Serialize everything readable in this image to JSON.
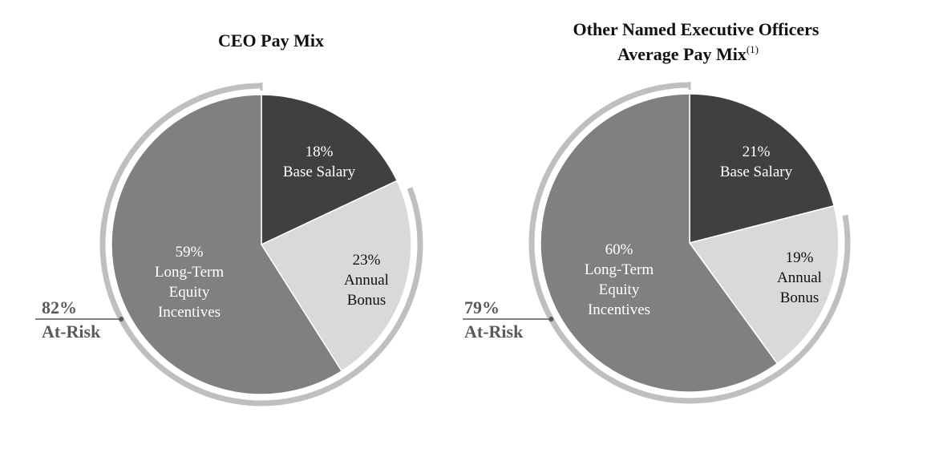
{
  "chart_data": [
    {
      "type": "pie",
      "title": "CEO Pay Mix",
      "slices": [
        {
          "label_pct": "18%",
          "label_lines": [
            "Base Salary"
          ],
          "value": 18,
          "color": "#404040",
          "text_color": "#ffffff"
        },
        {
          "label_pct": "23%",
          "label_lines": [
            "Annual",
            "Bonus"
          ],
          "value": 23,
          "color": "#d9d9d9",
          "text_color": "#111111"
        },
        {
          "label_pct": "59%",
          "label_lines": [
            "Long-Term",
            "Equity",
            "Incentives"
          ],
          "value": 59,
          "color": "#808080",
          "text_color": "#ffffff"
        }
      ],
      "at_risk": {
        "pct": "82%",
        "label": "At-Risk",
        "value": 82,
        "arc_color": "#bfbfbf"
      }
    },
    {
      "type": "pie",
      "title_lines": [
        "Other Named Executive Officers",
        "Average Pay Mix"
      ],
      "title_superscript": "(1)",
      "slices": [
        {
          "label_pct": "21%",
          "label_lines": [
            "Base Salary"
          ],
          "value": 21,
          "color": "#404040",
          "text_color": "#ffffff"
        },
        {
          "label_pct": "19%",
          "label_lines": [
            "Annual",
            "Bonus"
          ],
          "value": 19,
          "color": "#d9d9d9",
          "text_color": "#111111"
        },
        {
          "label_pct": "60%",
          "label_lines": [
            "Long-Term",
            "Equity",
            "Incentives"
          ],
          "value": 60,
          "color": "#808080",
          "text_color": "#ffffff"
        }
      ],
      "at_risk": {
        "pct": "79%",
        "label": "At-Risk",
        "value": 79,
        "arc_color": "#bfbfbf"
      }
    }
  ]
}
